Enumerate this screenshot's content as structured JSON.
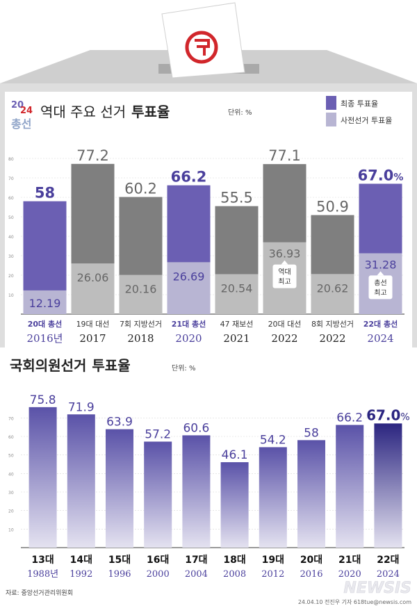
{
  "header": {
    "logo_top_left": "20",
    "logo_top_right": "24",
    "logo_bottom": "총선",
    "title_normal": "역대 주요 선거",
    "title_bold": "투표율",
    "unit": "단위: %"
  },
  "legend": [
    {
      "label": "최종 투표율",
      "color": "#6b5fb3"
    },
    {
      "label": "사전선거 투표율",
      "color": "#b8b5d3"
    }
  ],
  "chart_data": [
    {
      "type": "bar",
      "title": "역대 주요 선거 투표율",
      "unit": "단위: %",
      "ylim": [
        0,
        90
      ],
      "yticks": [
        10,
        20,
        30,
        40,
        50,
        60,
        70,
        80
      ],
      "categories": [
        "20대 총선",
        "19대 대선",
        "7회 지방선거",
        "21대 총선",
        "47 재보선",
        "20대 대선",
        "8회 지방선거",
        "22대 총선"
      ],
      "years": [
        "2016년",
        "2017",
        "2018",
        "2020",
        "2021",
        "2022",
        "2022",
        "2024"
      ],
      "series": [
        {
          "name": "최종 투표율",
          "values": [
            58,
            77.2,
            60.2,
            66.2,
            55.5,
            77.1,
            50.9,
            67.0
          ],
          "labels": [
            "58",
            "77.2",
            "60.2",
            "66.2",
            "55.5",
            "77.1",
            "50.9",
            "67.0"
          ]
        },
        {
          "name": "사전선거 투표율",
          "values": [
            12.19,
            26.06,
            20.16,
            26.69,
            20.54,
            36.93,
            20.62,
            31.28
          ],
          "labels": [
            "12.19",
            "26.06",
            "20.16",
            "26.69",
            "20.54",
            "36.93",
            "20.62",
            "31.28"
          ]
        }
      ],
      "highlighted": [
        0,
        3,
        7
      ],
      "annotations": [
        {
          "index": 5,
          "line1": "역대",
          "line2": "최고"
        },
        {
          "index": 7,
          "line1": "총선",
          "line2": "최고"
        }
      ],
      "last_value_suffix": "%",
      "colors": {
        "final_highlight": "#6b5fb3",
        "final_other": "#7f7f7f",
        "early_highlight": "#b8b5d3",
        "early_other": "#bdbdbd",
        "label_highlight": "#4a3f9c",
        "label_other": "#666666"
      }
    },
    {
      "type": "bar",
      "title": "국회의원선거 투표율",
      "unit": "단위: %",
      "ylim": [
        0,
        90
      ],
      "yticks": [
        10,
        20,
        30,
        40,
        50,
        60,
        70
      ],
      "categories": [
        "13대",
        "14대",
        "15대",
        "16대",
        "17대",
        "18대",
        "19대",
        "20대",
        "21대",
        "22대"
      ],
      "years": [
        "1988년",
        "1992",
        "1996",
        "2000",
        "2004",
        "2008",
        "2012",
        "2016",
        "2020",
        "2024"
      ],
      "series": [
        {
          "name": "투표율",
          "values": [
            75.8,
            71.9,
            63.9,
            57.2,
            60.6,
            46.1,
            54.2,
            58,
            66.2,
            67.0
          ],
          "labels": [
            "75.8",
            "71.9",
            "63.9",
            "57.2",
            "60.6",
            "46.1",
            "54.2",
            "58",
            "66.2",
            "67.0"
          ]
        }
      ],
      "last_value_suffix": "%",
      "colors": {
        "bar_top": "#5a52a8",
        "bar_bottom": "#e4e2f0",
        "last_top": "#2b2580",
        "last_bottom": "#e4e2f0",
        "year_color": "#4a3f9c"
      }
    }
  ],
  "bottom_title": {
    "normal": "국회의원선거",
    "bold": "투표율",
    "unit": "단위: %"
  },
  "footer": {
    "source": "자료: 중앙선거관리위원회",
    "credit": "24.04.10 전진우 기자 618tue@newsis.com",
    "watermark": "NEWSIS"
  }
}
